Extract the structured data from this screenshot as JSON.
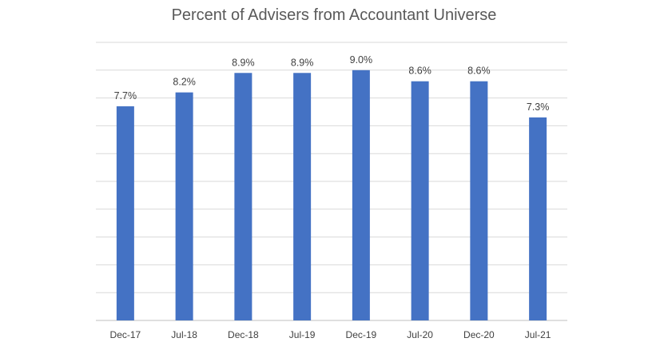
{
  "chart_data": {
    "type": "bar",
    "title": "Percent of Advisers from Accountant Universe",
    "categories": [
      "Dec-17",
      "Jul-18",
      "Dec-18",
      "Jul-19",
      "Dec-19",
      "Jul-20",
      "Dec-20",
      "Jul-21"
    ],
    "values": [
      7.7,
      8.2,
      8.9,
      8.9,
      9.0,
      8.6,
      8.6,
      7.3
    ],
    "data_labels": [
      "7.7%",
      "8.2%",
      "8.9%",
      "8.9%",
      "9.0%",
      "8.6%",
      "8.6%",
      "7.3%"
    ],
    "ylim": [
      0,
      10
    ],
    "grid": true,
    "bar_color": "#4472C4",
    "grid_color": "#D9D9D9"
  }
}
